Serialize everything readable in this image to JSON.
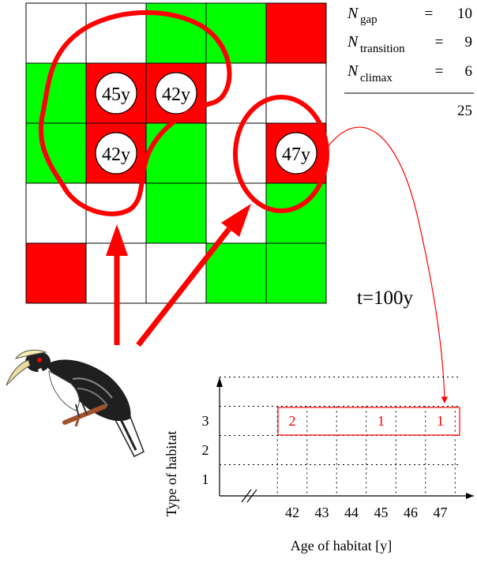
{
  "grid": {
    "rows": 5,
    "cols": 5,
    "cells": [
      [
        "white",
        "white",
        "green",
        "green",
        "red"
      ],
      [
        "green",
        "red",
        "red",
        "white",
        "white"
      ],
      [
        "green",
        "red",
        "green",
        "white",
        "red"
      ],
      [
        "white",
        "white",
        "green",
        "white",
        "green"
      ],
      [
        "red",
        "white",
        "white",
        "green",
        "green"
      ]
    ],
    "age_labels": [
      {
        "row": 1,
        "col": 1,
        "text": "45y"
      },
      {
        "row": 1,
        "col": 2,
        "text": "42y"
      },
      {
        "row": 2,
        "col": 1,
        "text": "42y"
      },
      {
        "row": 2,
        "col": 4,
        "text": "47y"
      }
    ],
    "colors": {
      "red": "#ff0000",
      "green": "#00ff00",
      "white": "#ffffff",
      "line": "#000000",
      "highlight": "#ff0000"
    }
  },
  "counts": {
    "rows": [
      {
        "symbol": "N",
        "sub": "gap",
        "eq": "=",
        "value": "10"
      },
      {
        "symbol": "N",
        "sub": "transition",
        "eq": "=",
        "value": "9"
      },
      {
        "symbol": "N",
        "sub": "climax",
        "eq": "=",
        "value": "6"
      }
    ],
    "total": "25"
  },
  "time_label": "t=100y",
  "bird": {
    "icon": "hornbill-bird-icon"
  },
  "chart_data": {
    "type": "table",
    "x_ticks": [
      "42",
      "43",
      "44",
      "45",
      "46",
      "47"
    ],
    "y_ticks": [
      "1",
      "2",
      "3"
    ],
    "xlabel": "Age of habitat [y]",
    "ylabel": "Type of habitat",
    "entries": [
      {
        "type": 3,
        "age": 42,
        "count": "2"
      },
      {
        "type": 3,
        "age": 45,
        "count": "1"
      },
      {
        "type": 3,
        "age": 47,
        "count": "1"
      }
    ]
  }
}
